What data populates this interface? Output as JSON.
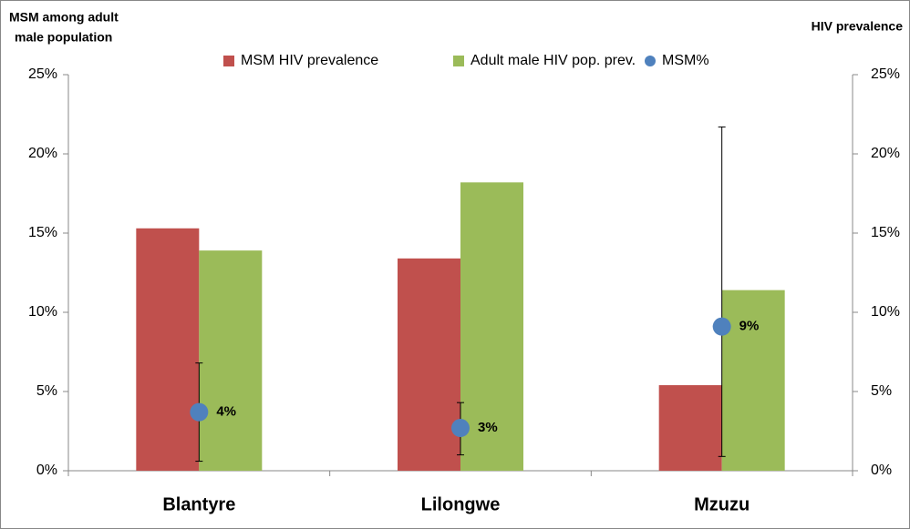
{
  "chart_data": {
    "type": "bar",
    "y_label": [
      "MSM among adult",
      "male population"
    ],
    "y2_label": "HIV prevalence",
    "categories": [
      "Blantyre",
      "Lilongwe",
      "Mzuzu"
    ],
    "series": [
      {
        "name": "MSM HIV prevalence",
        "color": "#c0504d",
        "axis": "y2",
        "type": "bar",
        "values": [
          15.3,
          13.4,
          5.4
        ]
      },
      {
        "name": "Adult male HIV pop. prev.",
        "color": "#9bbb59",
        "axis": "y2",
        "type": "bar",
        "values": [
          13.9,
          18.2,
          11.4
        ]
      },
      {
        "name": "MSM%",
        "color": "#4f81bd",
        "type": "point",
        "values": [
          3.7,
          2.7,
          9.1
        ],
        "value_labels": [
          "4%",
          "3%",
          "9%"
        ],
        "errors_minus": [
          3.1,
          1.7,
          8.2
        ],
        "errors_plus": [
          3.1,
          1.6,
          12.6
        ]
      }
    ],
    "ylim": [
      0,
      25
    ],
    "yticks": [
      {
        "value": 0,
        "label": "0%"
      },
      {
        "value": 5,
        "label": "5%"
      },
      {
        "value": 10,
        "label": "10%"
      },
      {
        "value": 15,
        "label": "15%"
      },
      {
        "value": 20,
        "label": "20%"
      },
      {
        "value": 25,
        "label": "25%"
      }
    ],
    "y2lim": [
      0,
      25
    ],
    "y2ticks": [
      {
        "value": 0,
        "label": "0%"
      },
      {
        "value": 5,
        "label": "5%"
      },
      {
        "value": 10,
        "label": "10%"
      },
      {
        "value": 15,
        "label": "15%"
      },
      {
        "value": 20,
        "label": "20%"
      },
      {
        "value": 25,
        "label": "25%"
      }
    ],
    "grid": false,
    "legend": "top"
  }
}
